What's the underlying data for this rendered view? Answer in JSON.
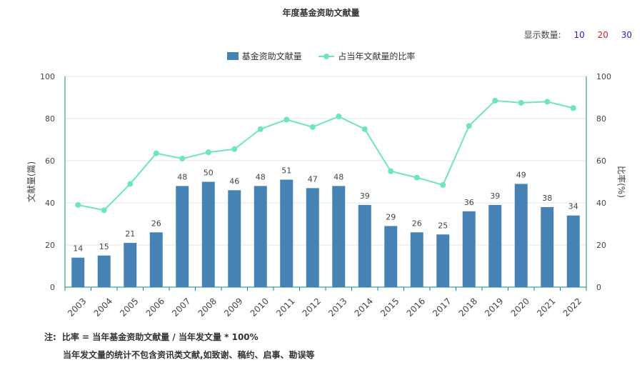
{
  "title": "年度基金资助文献量",
  "display_count": {
    "label": "显示数量:",
    "options": [
      {
        "label": "10",
        "color": "#2222cc"
      },
      {
        "label": "20",
        "color": "#dd2222"
      },
      {
        "label": "30",
        "color": "#2222cc"
      }
    ]
  },
  "legend": {
    "bar_label": "基金资助文献量",
    "line_label": "占当年文献量的比率"
  },
  "notes": {
    "prefix": "注:",
    "line1": "比率 = 当年基金资助文献量 / 当年发文量 * 100%",
    "line2": "当年发文量的统计不包含资讯类文献,如致谢、稿约、启事、勘误等"
  },
  "chart_data": {
    "type": "bar",
    "categories": [
      "2003",
      "2004",
      "2005",
      "2006",
      "2007",
      "2008",
      "2009",
      "2010",
      "2011",
      "2012",
      "2013",
      "2014",
      "2015",
      "2016",
      "2017",
      "2018",
      "2019",
      "2020",
      "2021",
      "2022"
    ],
    "series": [
      {
        "name": "基金资助文献量",
        "type": "bar",
        "axis": "left",
        "values": [
          14,
          15,
          21,
          26,
          48,
          50,
          46,
          48,
          51,
          47,
          48,
          39,
          29,
          26,
          25,
          36,
          39,
          49,
          38,
          34
        ]
      },
      {
        "name": "占当年文献量的比率",
        "type": "line",
        "axis": "right",
        "values": [
          39,
          36.5,
          49,
          63.5,
          61,
          64,
          65.5,
          75,
          79.5,
          76,
          81,
          75,
          55,
          52,
          48.5,
          76.5,
          88.5,
          87.5,
          88,
          85
        ]
      }
    ],
    "ylabel": "文献量(篇)",
    "y2label": "比率(%)",
    "ylim": [
      0,
      100
    ],
    "y2lim": [
      0,
      100
    ],
    "yticks": [
      0,
      20,
      40,
      60,
      80,
      100
    ],
    "colors": {
      "bar": "#4682b4",
      "line": "#6ee7b7",
      "axis": "#0a8a8a",
      "grid": "#e6e6e6"
    },
    "grid": true,
    "legend_position": "top"
  }
}
